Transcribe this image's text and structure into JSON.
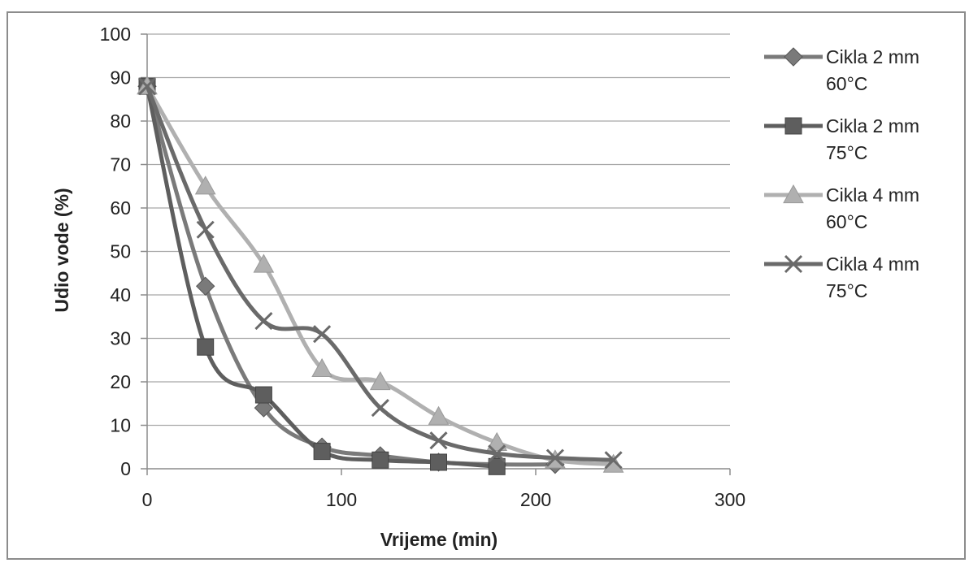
{
  "chart_data": {
    "type": "line",
    "xlabel": "Vrijeme (min)",
    "ylabel": "Udio vode (%)",
    "xlim": [
      0,
      300
    ],
    "ylim": [
      0,
      100
    ],
    "x_ticks": [
      "0",
      "100",
      "200",
      "300"
    ],
    "y_ticks": [
      "0",
      "10",
      "20",
      "30",
      "40",
      "50",
      "60",
      "70",
      "80",
      "90",
      "100"
    ],
    "grid": "horizontal",
    "legend_position": "right",
    "series": [
      {
        "name": "Cikla 2 mm 60°C",
        "name_lines": [
          "Cikla 2 mm",
          "60°C"
        ],
        "marker": "diamond",
        "color": "#7a7a7a",
        "x": [
          0,
          30,
          60,
          90,
          120,
          150,
          180,
          210
        ],
        "y": [
          88,
          42,
          14,
          5,
          3,
          1.5,
          1,
          1
        ]
      },
      {
        "name": "Cikla 2 mm 75°C",
        "name_lines": [
          "Cikla 2 mm",
          "75°C"
        ],
        "marker": "square",
        "color": "#5e5e5e",
        "x": [
          0,
          30,
          60,
          90,
          120,
          150,
          180
        ],
        "y": [
          88,
          28,
          17,
          4,
          2,
          1.5,
          0.5
        ]
      },
      {
        "name": "Cikla 4 mm 60°C",
        "name_lines": [
          "Cikla 4 mm",
          "60°C"
        ],
        "marker": "triangle",
        "color": "#b0b0b0",
        "x": [
          0,
          30,
          60,
          90,
          120,
          150,
          180,
          210,
          240
        ],
        "y": [
          88,
          65,
          47,
          23,
          20,
          12,
          6,
          2,
          1
        ]
      },
      {
        "name": "Cikla 4 mm 75°C",
        "name_lines": [
          "Cikla 4 mm",
          "75°C"
        ],
        "marker": "x",
        "color": "#6a6a6a",
        "x": [
          0,
          30,
          60,
          90,
          120,
          150,
          180,
          210,
          240
        ],
        "y": [
          88,
          55,
          34,
          31,
          14,
          6.5,
          3.5,
          2.5,
          2
        ]
      }
    ]
  }
}
